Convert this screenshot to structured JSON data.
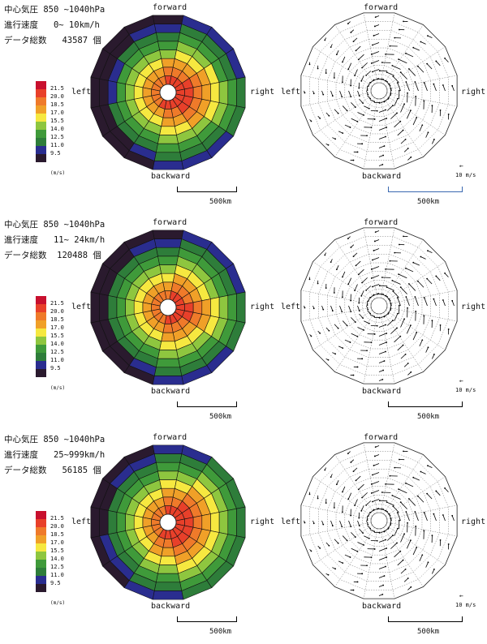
{
  "labels": {
    "forward": "forward",
    "backward": "backward",
    "left": "left",
    "right": "right",
    "scale": "500km",
    "unit": "(m/s)",
    "vector_ref": "10 m/s",
    "arrow_glyph": "←"
  },
  "legend": {
    "levels": [
      "21.5",
      "20.0",
      "18.5",
      "17.0",
      "15.5",
      "14.0",
      "12.5",
      "11.0",
      "9.5"
    ],
    "colors": [
      "#c8102e",
      "#e8402a",
      "#ef7a2a",
      "#f0a028",
      "#f6e840",
      "#8ec63f",
      "#3f9a3a",
      "#2e7d3a",
      "#2a2d8f",
      "#2a1a2e"
    ]
  },
  "panels": [
    {
      "pressure": "中心気圧 850 ~1040hPa",
      "speed": "進行速度   0~ 10km/h",
      "count": "データ総数   43587 個"
    },
    {
      "pressure": "中心気圧 850 ~1040hPa",
      "speed": "進行速度   11~ 24km/h",
      "count": "データ総数  120488 個"
    },
    {
      "pressure": "中心気圧 850 ~1040hPa",
      "speed": "進行速度   25~999km/h",
      "count": "データ総数   56185 個"
    }
  ],
  "chart_data": {
    "type": "heatmap",
    "description_kind": "polar wind-speed composite",
    "levels": [
      9.5,
      11.0,
      12.5,
      14.0,
      15.5,
      17.0,
      18.5,
      20.0,
      21.5
    ],
    "rings": 8,
    "sectors": 16
  }
}
